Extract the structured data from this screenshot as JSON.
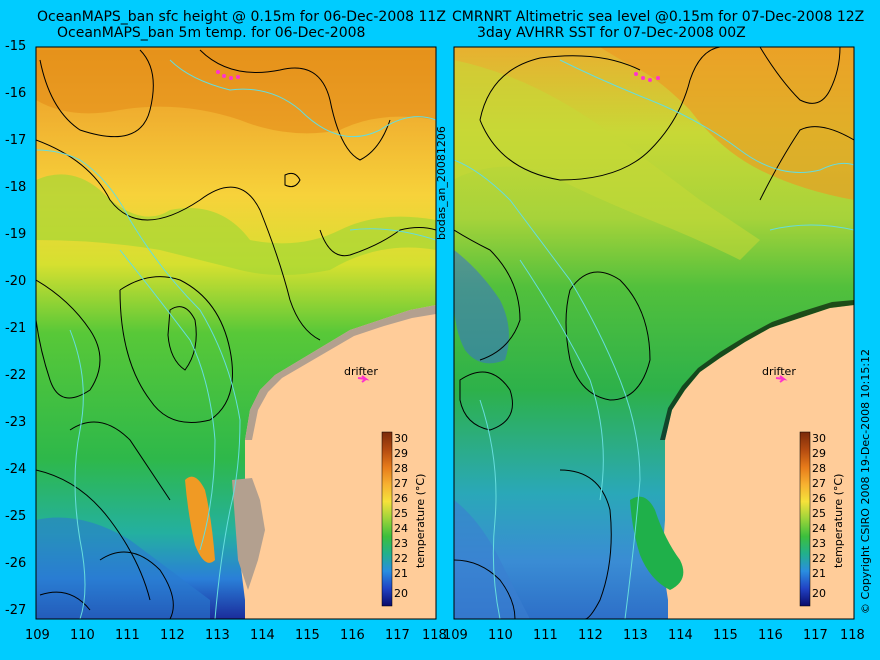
{
  "left_panel": {
    "title_line1": "OceanMAPS_ban sfc height @ 0.15m for 06-Dec-2008 11Z",
    "title_line2": "OceanMAPS_ban 5m temp. for 06-Dec-2008",
    "drifter_label": "drifter",
    "colorbar_label": "temperature (°C)"
  },
  "right_panel": {
    "title_line1": "CMRNRT Altimetric sea level  @0.15m  for 07-Dec-2008 12Z",
    "title_line2": "3day AVHRR SST for 07-Dec-2008 00Z",
    "drifter_label": "drifter",
    "colorbar_label": "temperature (°C)"
  },
  "side_label_left": "bodas_an_20081206",
  "side_label_right": "© Copyright CSIRO 2008  19-Dec-2008 10:15:12",
  "y_ticks": [
    "-15",
    "-16",
    "-17",
    "-18",
    "-19",
    "-20",
    "-21",
    "-22",
    "-23",
    "-24",
    "-25",
    "-26",
    "-27"
  ],
  "x_ticks_left": [
    "109",
    "110",
    "111",
    "112",
    "113",
    "114",
    "115",
    "116",
    "117",
    "118"
  ],
  "x_ticks_right": [
    "109",
    "110",
    "111",
    "112",
    "113",
    "114",
    "115",
    "116",
    "117",
    "118"
  ],
  "colorbar_ticks": [
    "30",
    "29",
    "28",
    "27",
    "26",
    "25",
    "24",
    "23",
    "22",
    "21",
    "20"
  ],
  "colors": {
    "background": "#00ccff",
    "land": "#ffcc99",
    "coast_shelf": "#b3a08f",
    "drifter": "#ff33cc",
    "contour_black": "#000000",
    "contour_cyan": "#66dddd"
  }
}
